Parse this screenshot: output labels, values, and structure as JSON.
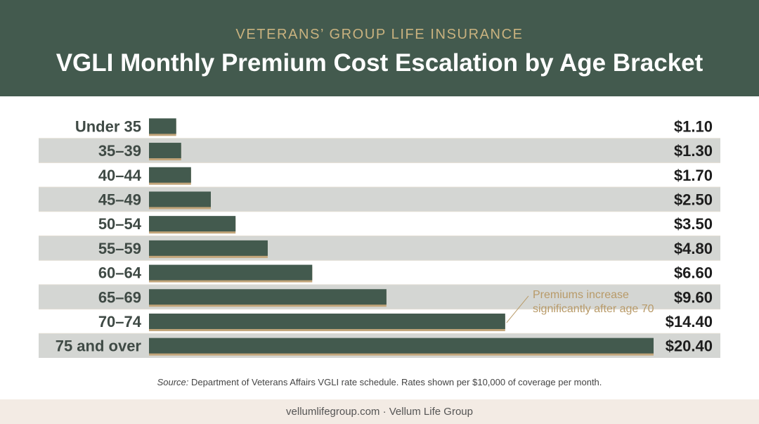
{
  "header": {
    "eyebrow": "VETERANS’ GROUP LIFE INSURANCE",
    "title": "VGLI Monthly Premium Cost Escalation by Age Bracket"
  },
  "chart_data": {
    "type": "bar",
    "orientation": "horizontal",
    "categories": [
      "Under 35",
      "35–39",
      "40–44",
      "45–49",
      "50–54",
      "55–59",
      "60–64",
      "65–69",
      "70–74",
      "75 and over"
    ],
    "values": [
      1.1,
      1.3,
      1.7,
      2.5,
      3.5,
      4.8,
      6.6,
      9.6,
      14.4,
      20.4
    ],
    "value_labels": [
      "$1.10",
      "$1.30",
      "$1.70",
      "$2.50",
      "$3.50",
      "$4.80",
      "$6.60",
      "$9.60",
      "$14.40",
      "$20.40"
    ],
    "xlim": [
      0,
      20.4
    ],
    "annotation": {
      "line1": "Premiums increase",
      "line2": "significantly after age 70",
      "target_category": "70–74"
    },
    "colors": {
      "bar": "#435a4e",
      "bar_shadow": "#c2a57a",
      "stripe": "#d4d6d3",
      "annotation": "#b89a68"
    }
  },
  "source": {
    "label": "Source:",
    "text": " Department of Veterans Affairs VGLI rate schedule. Rates shown per $10,000 of coverage per month."
  },
  "footer": {
    "text": "vellumlifegroup.com · Vellum Life Group"
  }
}
